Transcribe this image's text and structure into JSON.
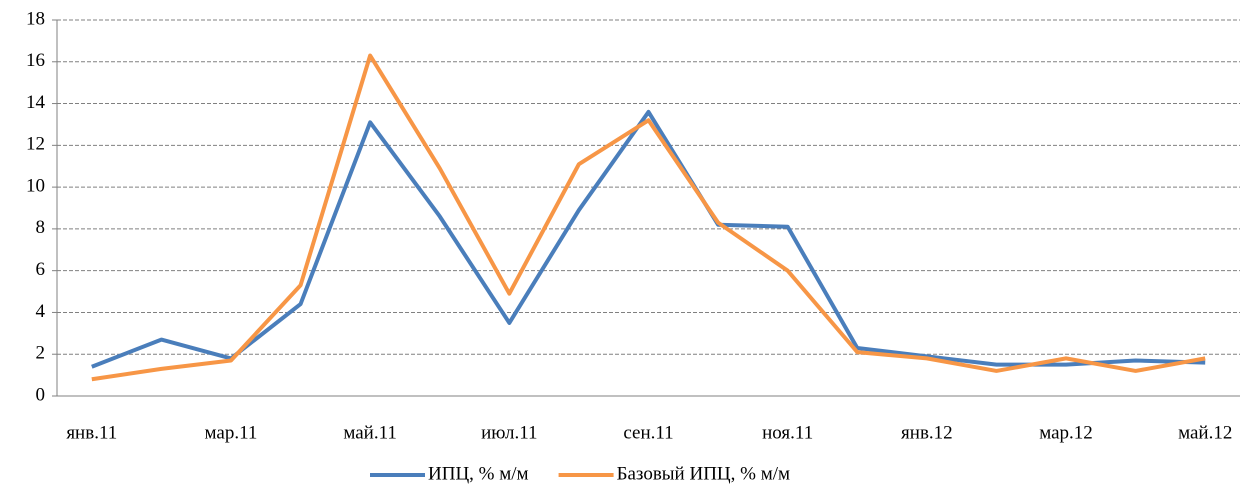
{
  "chart_data": {
    "type": "line",
    "categories": [
      "янв.11",
      null,
      "мар.11",
      null,
      "май.11",
      null,
      "июл.11",
      null,
      "сен.11",
      null,
      "ноя.11",
      null,
      "янв.12",
      null,
      "мар.12",
      null,
      "май.12"
    ],
    "series": [
      {
        "name": "ИПЦ, % м/м",
        "color": "#4a7ebb",
        "values": [
          1.4,
          2.7,
          1.8,
          4.4,
          13.1,
          8.6,
          3.5,
          8.9,
          13.6,
          8.2,
          8.1,
          2.3,
          1.9,
          1.5,
          1.5,
          1.7,
          1.6
        ]
      },
      {
        "name": "Базовый ИПЦ, % м/м",
        "color": "#f79646",
        "values": [
          0.8,
          1.3,
          1.7,
          5.3,
          16.3,
          10.9,
          4.9,
          11.1,
          13.2,
          8.3,
          6.0,
          2.1,
          1.8,
          1.2,
          1.8,
          1.2,
          1.8
        ]
      }
    ],
    "ylim": [
      0,
      18
    ],
    "yticks": [
      0,
      2,
      4,
      6,
      8,
      10,
      12,
      14,
      16,
      18
    ],
    "grid": true,
    "legend": "bottom"
  }
}
